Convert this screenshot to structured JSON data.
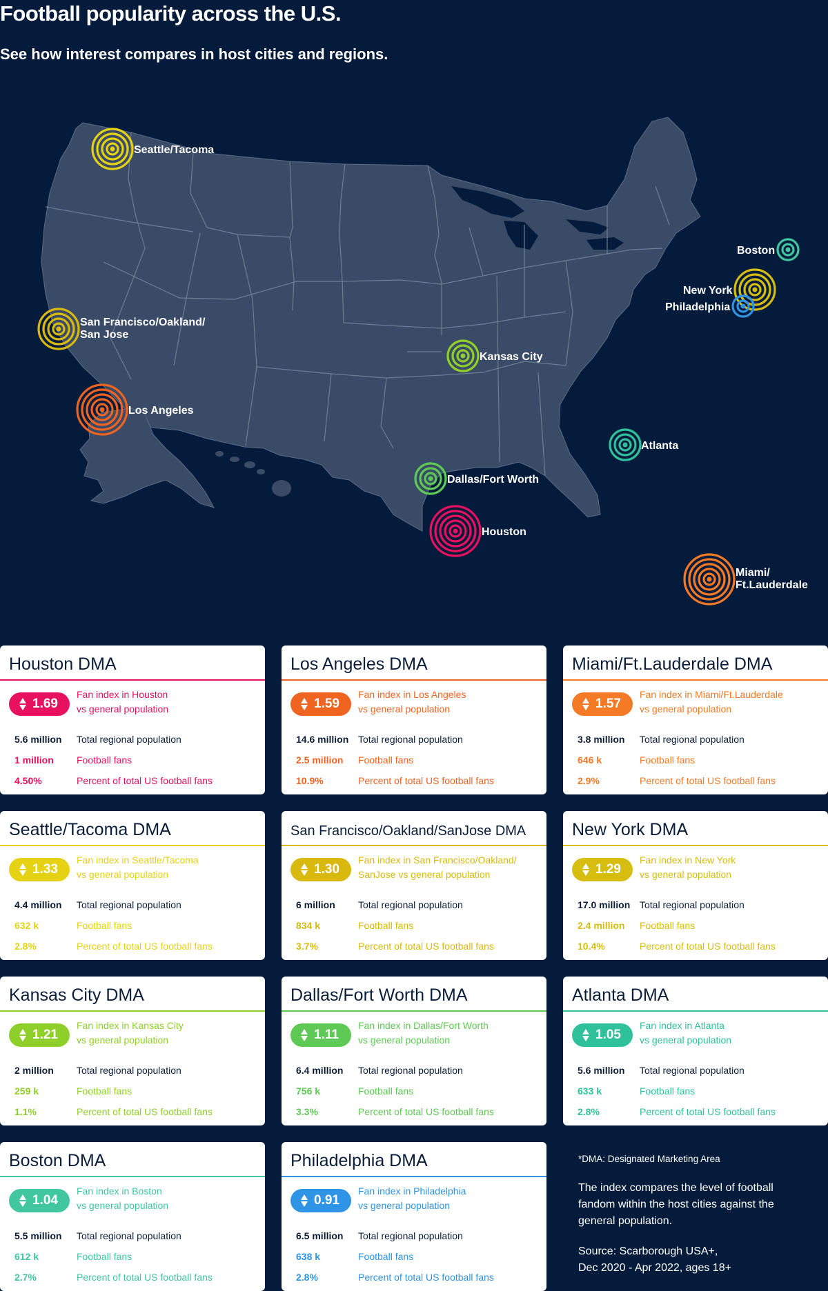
{
  "header": {
    "title": "Football popularity across the U.S.",
    "subtitle": "See how interest compares in host cities and regions."
  },
  "colors": {
    "background": "#041b3b",
    "land": "#394b66",
    "state_border": "#6d7e95",
    "houston": "#e8115f",
    "los_angeles": "#f06422",
    "miami": "#f47a25",
    "seattle": "#e6d214",
    "san_francisco": "#d9b90e",
    "new_york": "#d6bd10",
    "kansas_city": "#8fcf2a",
    "dallas": "#5ec954",
    "atlanta": "#2fc29a",
    "boston": "#40c7a0",
    "philadelphia": "#2f93e6"
  },
  "map": {
    "markers": [
      {
        "id": "seattle",
        "label_lines": [
          "Seattle/Tacoma"
        ],
        "color_key": "seattle",
        "rings": 3
      },
      {
        "id": "san-francisco",
        "label_lines": [
          "San Francisco/Oakland/",
          "San Jose"
        ],
        "color_key": "san_francisco",
        "rings": 3
      },
      {
        "id": "los-angeles",
        "label_lines": [
          "Los Angeles"
        ],
        "color_key": "los_angeles",
        "rings": 4
      },
      {
        "id": "kansas-city",
        "label_lines": [
          "Kansas City"
        ],
        "color_key": "kansas_city",
        "rings": 2
      },
      {
        "id": "dallas",
        "label_lines": [
          "Dallas/Fort Worth"
        ],
        "color_key": "dallas",
        "rings": 2
      },
      {
        "id": "houston",
        "label_lines": [
          "Houston"
        ],
        "color_key": "houston",
        "rings": 4
      },
      {
        "id": "atlanta",
        "label_lines": [
          "Atlanta"
        ],
        "color_key": "atlanta",
        "rings": 2
      },
      {
        "id": "miami",
        "label_lines": [
          "Miami/",
          "Ft.Lauderdale"
        ],
        "color_key": "miami",
        "rings": 4
      },
      {
        "id": "boston",
        "label_lines": [
          "Boston"
        ],
        "color_key": "boston",
        "rings": 1
      },
      {
        "id": "new-york",
        "label_lines": [
          "New York"
        ],
        "color_key": "new_york",
        "rings": 3
      },
      {
        "id": "philadelphia",
        "label_lines": [
          "Philadelphia"
        ],
        "color_key": "philadelphia",
        "rings": 1
      }
    ]
  },
  "cards": [
    {
      "id": "houston",
      "title": "Houston DMA",
      "index": "1.69",
      "fan_prefix": "Fan index in Houston",
      "fan_line2": "vs general population",
      "pop": "5.6 million",
      "fans": "1 million",
      "pct": "4.50%",
      "pop_label": "Total regional population",
      "fans_label": "Football fans",
      "pct_label": "Percent of total US football fans",
      "color_key": "houston"
    },
    {
      "id": "los-angeles",
      "title": "Los Angeles DMA",
      "index": "1.59",
      "fan_prefix": "Fan index in Los Angeles",
      "fan_line2": "vs general population",
      "pop": "14.6 million",
      "fans": "2.5 million",
      "pct": "10.9%",
      "pop_label": "Total regional population",
      "fans_label": "Football fans",
      "pct_label": "Percent of total US football fans",
      "color_key": "los_angeles"
    },
    {
      "id": "miami",
      "title": "Miami/Ft.Lauderdale DMA",
      "index": "1.57",
      "fan_prefix": "Fan index in Miami/Ft.Lauderdale",
      "fan_line2": "vs general population",
      "pop": "3.8 million",
      "fans": "646 k",
      "pct": "2.9%",
      "pop_label": "Total regional population",
      "fans_label": "Football fans",
      "pct_label": "Percent of total US football fans",
      "color_key": "miami"
    },
    {
      "id": "seattle",
      "title": "Seattle/Tacoma DMA",
      "index": "1.33",
      "fan_prefix": "Fan index in Seattle/Tacoma",
      "fan_line2": "vs general population",
      "pop": "4.4 million",
      "fans": "632 k",
      "pct": "2.8%",
      "pop_label": "Total regional population",
      "fans_label": "Football fans",
      "pct_label": "Percent of total US football fans",
      "color_key": "seattle"
    },
    {
      "id": "san-francisco",
      "title": "San Francisco/Oakland/SanJose DMA",
      "small_title": true,
      "index": "1.30",
      "fan_prefix": "Fan index in San Francisco/Oakland/",
      "fan_line2": "SanJose vs general population",
      "pop": "6 million",
      "fans": "834 k",
      "pct": "3.7%",
      "pop_label": "Total regional population",
      "fans_label": "Football fans",
      "pct_label": "Percent of total US football fans",
      "color_key": "san_francisco"
    },
    {
      "id": "new-york",
      "title": "New York DMA",
      "index": "1.29",
      "fan_prefix": "Fan index in New York",
      "fan_line2": "vs general population",
      "pop": "17.0 million",
      "fans": "2.4 million",
      "pct": "10.4%",
      "pop_label": "Total regional population",
      "fans_label": "Football fans",
      "pct_label": "Percent of total US football fans",
      "color_key": "new_york"
    },
    {
      "id": "kansas-city",
      "title": "Kansas City DMA",
      "index": "1.21",
      "fan_prefix": "Fan index in Kansas City",
      "fan_line2": "vs general population",
      "pop": "2 million",
      "fans": "259 k",
      "pct": "1.1%",
      "pop_label": "Total regional population",
      "fans_label": "Football fans",
      "pct_label": "Percent of total US football fans",
      "color_key": "kansas_city"
    },
    {
      "id": "dallas",
      "title": "Dallas/Fort Worth DMA",
      "index": "1.11",
      "fan_prefix": "Fan index in Dallas/Fort Worth",
      "fan_line2": "vs general population",
      "pop": "6.4 million",
      "fans": "756 k",
      "pct": "3.3%",
      "pop_label": "Total regional population",
      "fans_label": "Football fans",
      "pct_label": "Percent of total US football fans",
      "color_key": "dallas"
    },
    {
      "id": "atlanta",
      "title": "Atlanta DMA",
      "index": "1.05",
      "fan_prefix": "Fan index in Atlanta",
      "fan_line2": "vs general population",
      "pop": "5.6 million",
      "fans": "633 k",
      "pct": "2.8%",
      "pop_label": "Total regional population",
      "fans_label": "Football fans",
      "pct_label": "Percent of total US football fans",
      "color_key": "atlanta"
    },
    {
      "id": "boston",
      "title": "Boston DMA",
      "index": "1.04",
      "fan_prefix": "Fan index in Boston",
      "fan_line2": "vs general population",
      "pop": "5.5 million",
      "fans": "612 k",
      "pct": "2.7%",
      "pop_label": "Total regional population",
      "fans_label": "Football fans",
      "pct_label": "Percent of total US football fans",
      "color_key": "boston"
    },
    {
      "id": "philadelphia",
      "title": "Philadelphia DMA",
      "index": "0.91",
      "fan_prefix": "Fan index in Philadelphia",
      "fan_line2": " vs general population",
      "pop": "6.5 million",
      "fans": "638 k",
      "pct": "2.8%",
      "pop_label": "Total regional population",
      "fans_label": "Football fans",
      "pct_label": "Percent of total US football fans",
      "color_key": "philadelphia"
    }
  ],
  "notes": {
    "dma": "*DMA: Designated Marketing Area",
    "index_explainer": "The index compares the level of football fandom within the host cities against the general population.",
    "source_line1": "Source: Scarborough USA+,",
    "source_line2": "Dec 2020 - Apr 2022, ages 18+"
  }
}
